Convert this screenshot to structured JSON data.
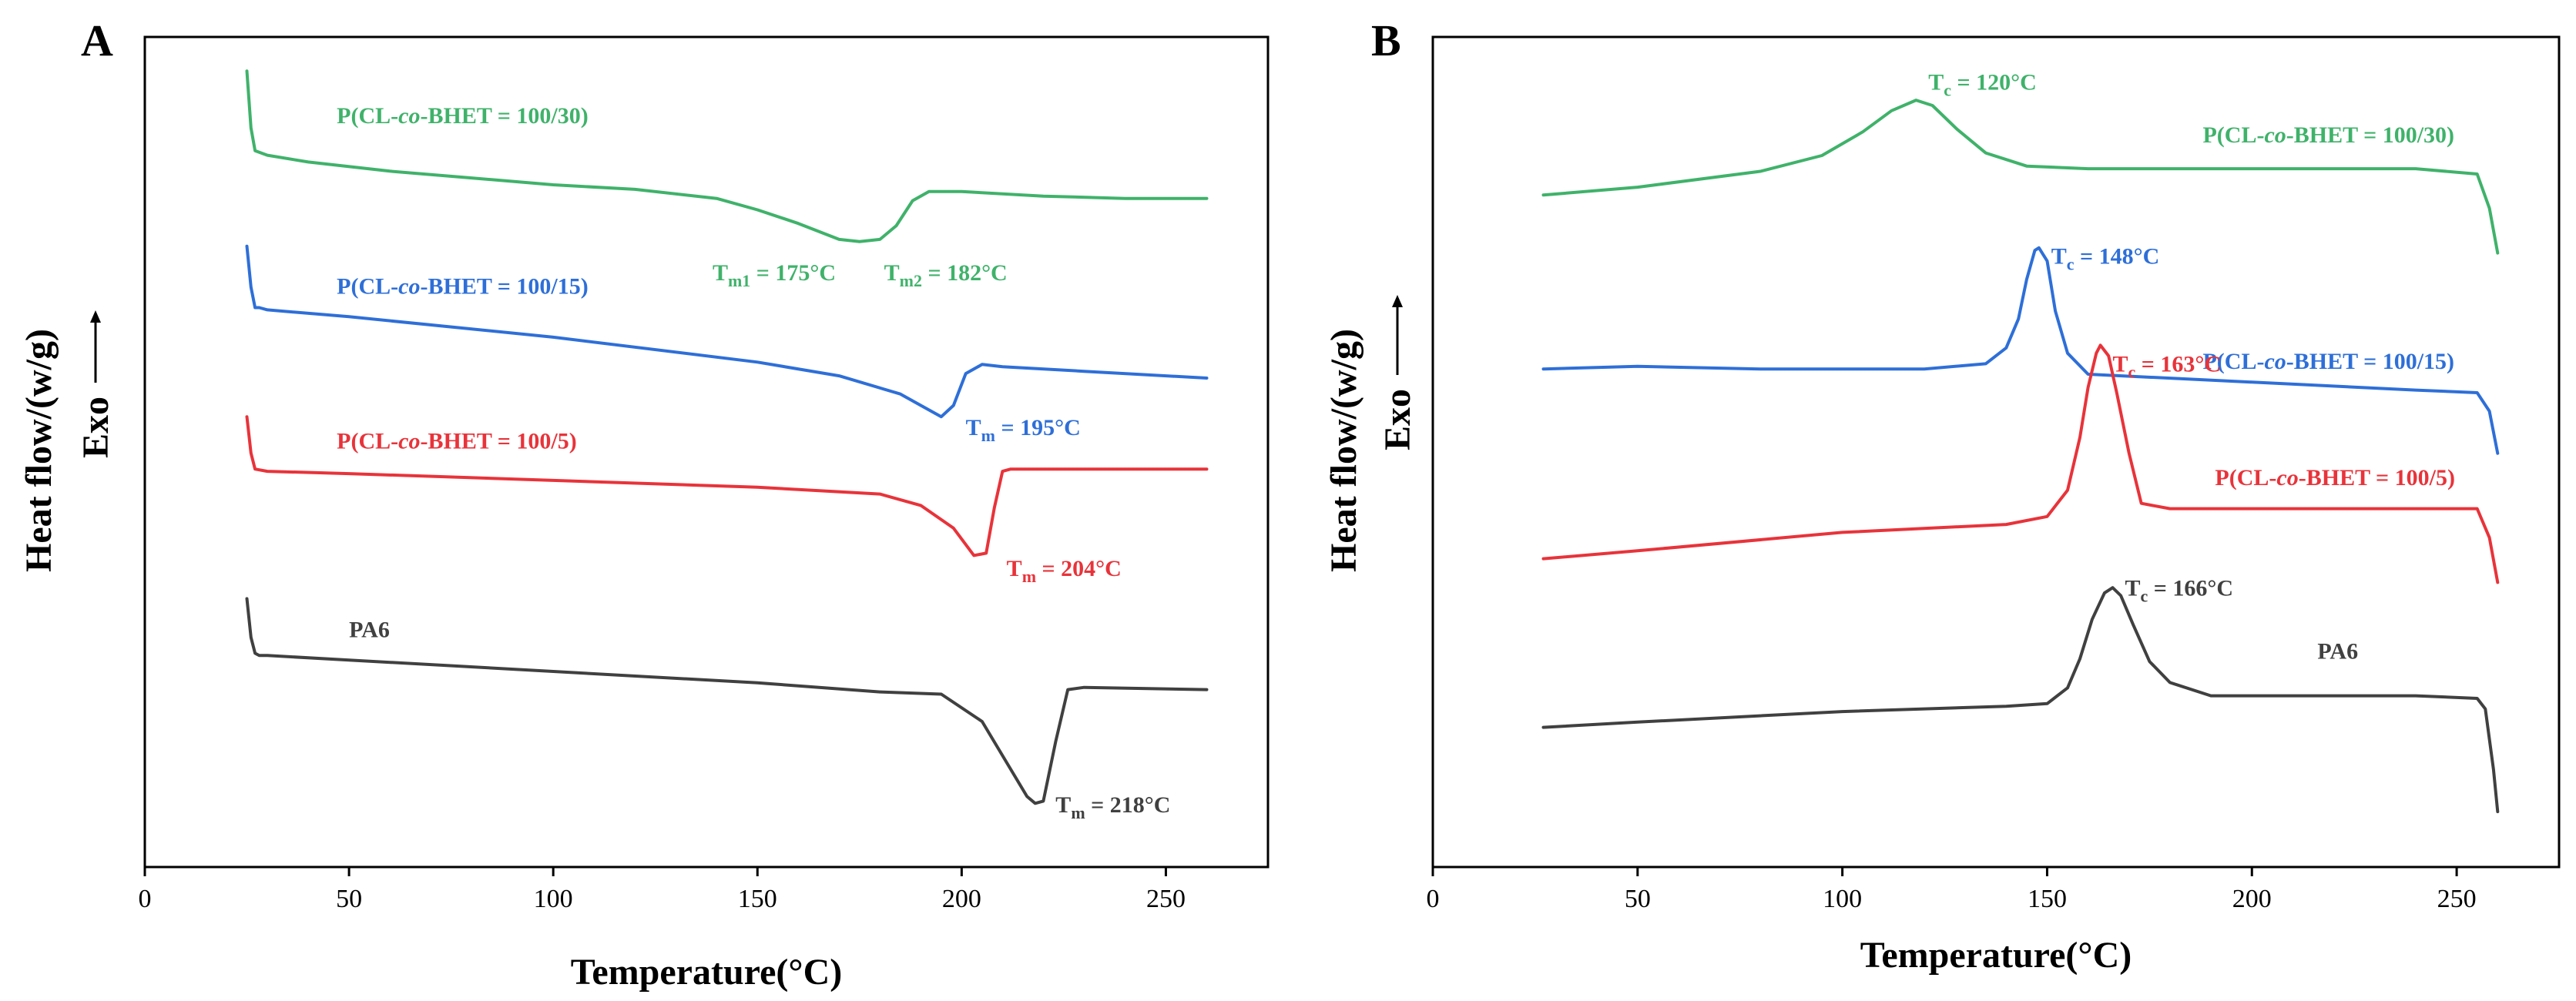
{
  "chart_data": [
    {
      "type": "line",
      "panel": "A",
      "xlabel": "Temperature(°C)",
      "ylabel": "Heat flow/(w/g)",
      "ylabel_dir": "Exo",
      "xlim": [
        0,
        275
      ],
      "xticks": [
        0,
        50,
        100,
        150,
        200,
        250
      ],
      "yticks": false,
      "grid": false,
      "series": [
        {
          "name": "P(CL-co-BHET = 100/30)",
          "color": "#3fb26a",
          "x": [
            25,
            26,
            27,
            30,
            40,
            60,
            80,
            100,
            120,
            140,
            150,
            160,
            170,
            175,
            180,
            184,
            188,
            192,
            200,
            220,
            240,
            260
          ],
          "y": [
            22.0,
            19.5,
            18.5,
            18.3,
            18.0,
            17.6,
            17.3,
            17.0,
            16.8,
            16.4,
            15.9,
            15.3,
            14.6,
            14.5,
            14.6,
            15.2,
            16.3,
            16.7,
            16.7,
            16.5,
            16.4,
            16.4
          ]
        },
        {
          "name": "P(CL-co-BHET = 100/15)",
          "color": "#2e6fd8",
          "x": [
            25,
            26,
            27,
            28,
            30,
            50,
            100,
            150,
            170,
            185,
            190,
            195,
            198,
            201,
            205,
            210,
            230,
            260
          ],
          "y": [
            14.3,
            12.5,
            11.6,
            11.6,
            11.5,
            11.2,
            10.3,
            9.2,
            8.6,
            7.8,
            7.3,
            6.8,
            7.3,
            8.7,
            9.1,
            9.0,
            8.8,
            8.5
          ]
        },
        {
          "name": "P(CL-co-BHET = 100/5)",
          "color": "#e8333a",
          "x": [
            25,
            26,
            27,
            30,
            50,
            100,
            150,
            180,
            190,
            198,
            203,
            206,
            208,
            210,
            212,
            230,
            260
          ],
          "y": [
            6.8,
            5.2,
            4.5,
            4.4,
            4.3,
            4.0,
            3.7,
            3.4,
            2.9,
            1.9,
            0.7,
            0.8,
            2.8,
            4.4,
            4.5,
            4.5,
            4.5
          ]
        },
        {
          "name": "PA6",
          "color": "#404040",
          "x": [
            25,
            26,
            27,
            28,
            30,
            50,
            100,
            150,
            180,
            195,
            205,
            212,
            216,
            218,
            220,
            223,
            226,
            230,
            260
          ],
          "y": [
            -1.2,
            -2.9,
            -3.6,
            -3.7,
            -3.7,
            -3.9,
            -4.4,
            -4.9,
            -5.3,
            -5.4,
            -6.6,
            -8.7,
            -9.9,
            -10.2,
            -10.1,
            -7.5,
            -5.2,
            -5.1,
            -5.2
          ]
        }
      ],
      "annotations": [
        {
          "text": "P(CL-co-BHET = 100/30)",
          "color": "#3fb26a",
          "x": 47,
          "y": 19.7
        },
        {
          "text": "Tm1 = 175°C",
          "color": "#3fb26a",
          "x": 139,
          "y": 12.8
        },
        {
          "text": "Tm2 = 182°C",
          "color": "#3fb26a",
          "x": 181,
          "y": 12.8
        },
        {
          "text": "P(CL-co-BHET = 100/15)",
          "color": "#2e6fd8",
          "x": 47,
          "y": 12.2
        },
        {
          "text": "Tm = 195°C",
          "color": "#2e6fd8",
          "x": 201,
          "y": 6.0
        },
        {
          "text": "P(CL-co-BHET = 100/5)",
          "color": "#e8333a",
          "x": 47,
          "y": 5.4
        },
        {
          "text": "Tm = 204°C",
          "color": "#e8333a",
          "x": 211,
          "y": -0.2
        },
        {
          "text": "PA6",
          "color": "#404040",
          "x": 50,
          "y": -2.9
        },
        {
          "text": "Tm = 218°C",
          "color": "#404040",
          "x": 223,
          "y": -10.6
        }
      ]
    },
    {
      "type": "line",
      "panel": "B",
      "xlabel": "Temperature(°C)",
      "ylabel": "Heat flow/(w/g)",
      "ylabel_dir": "Exo",
      "xlim": [
        0,
        275
      ],
      "xticks": [
        0,
        50,
        100,
        150,
        200,
        250
      ],
      "yticks": false,
      "grid": false,
      "series": [
        {
          "name": "P(CL-co-BHET = 100/30)",
          "color": "#3fb26a",
          "x": [
            27,
            50,
            80,
            95,
            105,
            112,
            118,
            122,
            128,
            135,
            145,
            160,
            200,
            240,
            255,
            258,
            260
          ],
          "y": [
            17.0,
            17.3,
            17.9,
            18.5,
            19.4,
            20.2,
            20.6,
            20.4,
            19.5,
            18.6,
            18.1,
            18.0,
            18.0,
            18.0,
            17.8,
            16.5,
            14.8
          ]
        },
        {
          "name": "P(CL-co-BHET = 100/15)",
          "color": "#2e6fd8",
          "x": [
            27,
            50,
            80,
            100,
            120,
            135,
            140,
            143,
            145,
            147,
            148,
            150,
            152,
            155,
            160,
            200,
            240,
            255,
            258,
            260
          ],
          "y": [
            10.4,
            10.5,
            10.4,
            10.4,
            10.4,
            10.6,
            11.2,
            12.3,
            13.8,
            14.9,
            15.0,
            14.5,
            12.6,
            11.0,
            10.2,
            9.9,
            9.6,
            9.5,
            8.8,
            7.2
          ]
        },
        {
          "name": "P(CL-co-BHET = 100/5)",
          "color": "#e8333a",
          "x": [
            27,
            50,
            100,
            140,
            150,
            155,
            158,
            160,
            162,
            163,
            165,
            167,
            170,
            173,
            180,
            200,
            240,
            255,
            258,
            260
          ],
          "y": [
            3.2,
            3.5,
            4.2,
            4.5,
            4.8,
            5.8,
            7.8,
            9.7,
            11.0,
            11.3,
            10.9,
            9.5,
            7.2,
            5.3,
            5.1,
            5.1,
            5.1,
            5.1,
            4.0,
            2.3
          ]
        },
        {
          "name": "PA6",
          "color": "#404040",
          "x": [
            27,
            50,
            100,
            140,
            150,
            155,
            158,
            161,
            164,
            166,
            168,
            171,
            175,
            180,
            190,
            240,
            255,
            257,
            259,
            260
          ],
          "y": [
            -3.2,
            -3.0,
            -2.6,
            -2.4,
            -2.3,
            -1.7,
            -0.6,
            0.9,
            1.9,
            2.1,
            1.8,
            0.7,
            -0.7,
            -1.5,
            -2.0,
            -2.0,
            -2.1,
            -2.5,
            -4.8,
            -6.4
          ]
        }
      ],
      "annotations": [
        {
          "text": "Tc = 120°C",
          "color": "#3fb26a",
          "x": 121,
          "y": 21.0
        },
        {
          "text": "P(CL-co-BHET = 100/30)",
          "color": "#3fb26a",
          "x": 188,
          "y": 19.0
        },
        {
          "text": "Tc = 148°C",
          "color": "#2e6fd8",
          "x": 151,
          "y": 14.4
        },
        {
          "text": "P(CL-co-BHET = 100/15)",
          "color": "#2e6fd8",
          "x": 188,
          "y": 10.4
        },
        {
          "text": "Tc = 163°C",
          "color": "#e8333a",
          "x": 166,
          "y": 10.3
        },
        {
          "text": "P(CL-co-BHET = 100/5)",
          "color": "#e8333a",
          "x": 191,
          "y": 6.0
        },
        {
          "text": "Tc = 166°C",
          "color": "#404040",
          "x": 169,
          "y": 1.8
        },
        {
          "text": "PA6",
          "color": "#404040",
          "x": 216,
          "y": -0.6
        }
      ]
    }
  ]
}
